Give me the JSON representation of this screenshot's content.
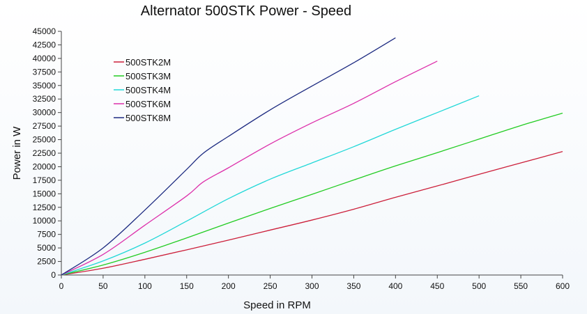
{
  "chart_data": {
    "type": "line",
    "title": "Alternator 500STK Power - Speed",
    "xlabel": "Speed in RPM",
    "ylabel": "Power in W",
    "xlim": [
      0,
      600
    ],
    "ylim": [
      0,
      45000
    ],
    "x_ticks": [
      0,
      50,
      100,
      150,
      200,
      250,
      300,
      350,
      400,
      450,
      500,
      550,
      600
    ],
    "y_ticks": [
      0,
      2500,
      5000,
      7500,
      10000,
      12500,
      15000,
      17500,
      20000,
      22500,
      25000,
      27500,
      30000,
      32500,
      35000,
      37500,
      40000,
      42500,
      45000
    ],
    "grid": false,
    "legend_position": "top-left",
    "series": [
      {
        "name": "500STK2M",
        "color": "#cc1f3a",
        "points": [
          [
            0,
            0
          ],
          [
            50,
            1250
          ],
          [
            100,
            2900
          ],
          [
            150,
            4650
          ],
          [
            200,
            6450
          ],
          [
            250,
            8300
          ],
          [
            300,
            10150
          ],
          [
            350,
            12150
          ],
          [
            400,
            14350
          ],
          [
            450,
            16450
          ],
          [
            500,
            18600
          ],
          [
            550,
            20700
          ],
          [
            600,
            22800
          ]
        ]
      },
      {
        "name": "500STK3M",
        "color": "#22cc22",
        "points": [
          [
            0,
            0
          ],
          [
            50,
            1850
          ],
          [
            100,
            4200
          ],
          [
            150,
            6850
          ],
          [
            200,
            9600
          ],
          [
            250,
            12300
          ],
          [
            300,
            14900
          ],
          [
            350,
            17550
          ],
          [
            400,
            20150
          ],
          [
            450,
            22600
          ],
          [
            500,
            25100
          ],
          [
            550,
            27600
          ],
          [
            600,
            29900
          ]
        ]
      },
      {
        "name": "500STK4M",
        "color": "#22d8d8",
        "points": [
          [
            0,
            0
          ],
          [
            50,
            2600
          ],
          [
            100,
            5900
          ],
          [
            150,
            9950
          ],
          [
            200,
            14100
          ],
          [
            250,
            17700
          ],
          [
            300,
            20700
          ],
          [
            350,
            23700
          ],
          [
            400,
            26900
          ],
          [
            450,
            30000
          ],
          [
            500,
            33100
          ]
        ]
      },
      {
        "name": "500STK6M",
        "color": "#dd2faa",
        "points": [
          [
            0,
            0
          ],
          [
            50,
            3800
          ],
          [
            100,
            9200
          ],
          [
            150,
            14600
          ],
          [
            170,
            17200
          ],
          [
            200,
            19800
          ],
          [
            250,
            24200
          ],
          [
            300,
            28100
          ],
          [
            350,
            31700
          ],
          [
            400,
            35700
          ],
          [
            450,
            39500
          ]
        ]
      },
      {
        "name": "500STK8M",
        "color": "#1c2a80",
        "points": [
          [
            0,
            0
          ],
          [
            50,
            5000
          ],
          [
            100,
            12000
          ],
          [
            150,
            19500
          ],
          [
            170,
            22500
          ],
          [
            200,
            25600
          ],
          [
            250,
            30500
          ],
          [
            300,
            34900
          ],
          [
            350,
            39200
          ],
          [
            400,
            43800
          ]
        ]
      }
    ]
  }
}
